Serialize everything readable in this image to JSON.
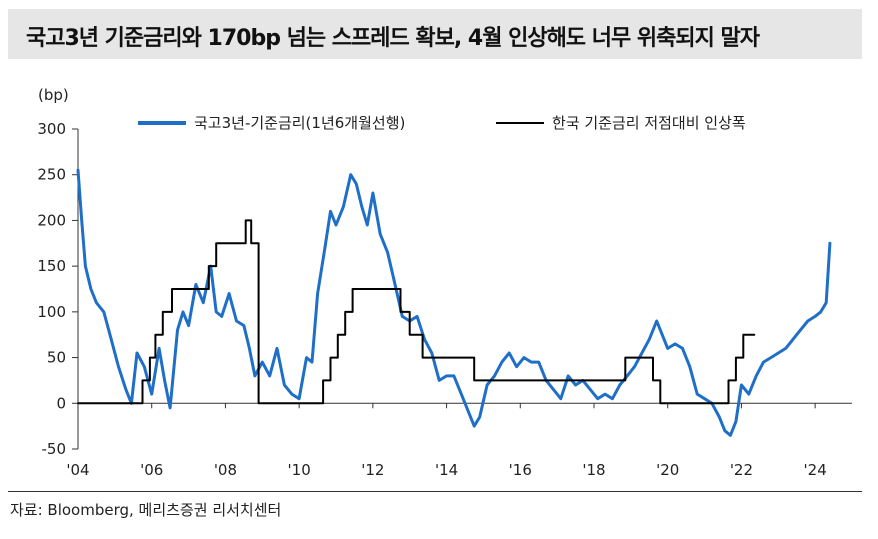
{
  "title": "국고3년 기준금리와 170bp 넘는 스프레드 확보, 4월 인상해도 너무 위축되지 말자",
  "source": "자료: Bloomberg, 메리츠증권 리서치센터",
  "chart_data": {
    "type": "line",
    "unit_label": "(bp)",
    "ylim": [
      -50,
      300
    ],
    "yticks": [
      -50,
      0,
      50,
      100,
      150,
      200,
      250,
      300
    ],
    "xlim": [
      2004.0,
      2025.0
    ],
    "xticks": [
      {
        "value": 2004,
        "label": "'04"
      },
      {
        "value": 2006,
        "label": "'06"
      },
      {
        "value": 2008,
        "label": "'08"
      },
      {
        "value": 2010,
        "label": "'10"
      },
      {
        "value": 2012,
        "label": "'12"
      },
      {
        "value": 2014,
        "label": "'14"
      },
      {
        "value": 2016,
        "label": "'16"
      },
      {
        "value": 2018,
        "label": "'18"
      },
      {
        "value": 2020,
        "label": "'20"
      },
      {
        "value": 2022,
        "label": "'22"
      },
      {
        "value": 2024,
        "label": "'24"
      }
    ],
    "grid": false,
    "legend_position": "top",
    "series": [
      {
        "name": "국고3년-기준금리(1년6개월선행)",
        "color": "#1f6fc8",
        "style": "line",
        "x": [
          2004.0,
          2004.1,
          2004.2,
          2004.35,
          2004.5,
          2004.7,
          2004.9,
          2005.1,
          2005.3,
          2005.45,
          2005.6,
          2005.8,
          2006.0,
          2006.2,
          2006.35,
          2006.5,
          2006.7,
          2006.85,
          2007.0,
          2007.2,
          2007.4,
          2007.6,
          2007.75,
          2007.9,
          2008.1,
          2008.3,
          2008.5,
          2008.65,
          2008.8,
          2009.0,
          2009.2,
          2009.4,
          2009.6,
          2009.8,
          2010.0,
          2010.2,
          2010.35,
          2010.5,
          2010.7,
          2010.85,
          2011.0,
          2011.2,
          2011.4,
          2011.55,
          2011.7,
          2011.85,
          2012.0,
          2012.2,
          2012.4,
          2012.6,
          2012.8,
          2013.0,
          2013.2,
          2013.4,
          2013.6,
          2013.8,
          2014.0,
          2014.2,
          2014.4,
          2014.6,
          2014.75,
          2014.9,
          2015.1,
          2015.3,
          2015.5,
          2015.7,
          2015.9,
          2016.1,
          2016.3,
          2016.5,
          2016.7,
          2016.9,
          2017.1,
          2017.3,
          2017.5,
          2017.7,
          2017.9,
          2018.1,
          2018.3,
          2018.5,
          2018.7,
          2018.9,
          2019.1,
          2019.3,
          2019.5,
          2019.7,
          2019.85,
          2020.0,
          2020.2,
          2020.4,
          2020.6,
          2020.8,
          2021.0,
          2021.2,
          2021.4,
          2021.55,
          2021.7,
          2021.85,
          2022.0,
          2022.2,
          2022.4,
          2022.6,
          2022.8,
          2023.0,
          2023.2,
          2023.4,
          2023.6,
          2023.8,
          2024.0,
          2024.15,
          2024.3,
          2024.4
        ],
        "y": [
          255,
          200,
          150,
          125,
          110,
          100,
          70,
          40,
          15,
          0,
          55,
          40,
          10,
          60,
          25,
          -5,
          80,
          100,
          85,
          130,
          110,
          150,
          100,
          95,
          120,
          90,
          85,
          60,
          30,
          45,
          30,
          60,
          20,
          10,
          5,
          50,
          45,
          120,
          170,
          210,
          195,
          215,
          250,
          240,
          215,
          195,
          230,
          185,
          165,
          130,
          95,
          90,
          95,
          70,
          55,
          25,
          30,
          30,
          10,
          -10,
          -25,
          -15,
          20,
          30,
          45,
          55,
          40,
          50,
          45,
          45,
          25,
          15,
          5,
          30,
          20,
          25,
          15,
          5,
          10,
          5,
          20,
          30,
          40,
          55,
          70,
          90,
          75,
          60,
          65,
          60,
          40,
          10,
          5,
          0,
          -15,
          -30,
          -35,
          -20,
          20,
          10,
          30,
          45,
          50,
          55,
          60,
          70,
          80,
          90,
          95,
          100,
          110,
          175
        ]
      },
      {
        "name": "한국 기준금리 저점대비 인상폭",
        "color": "#000000",
        "style": "step",
        "x": [
          2004.0,
          2005.75,
          2005.95,
          2006.1,
          2006.3,
          2006.55,
          2006.7,
          2007.55,
          2007.75,
          2008.55,
          2008.7,
          2008.9,
          2010.45,
          2010.65,
          2010.85,
          2011.05,
          2011.25,
          2011.45,
          2012.45,
          2012.75,
          2013.0,
          2013.35,
          2014.5,
          2014.75,
          2017.9,
          2018.85,
          2019.4,
          2019.6,
          2019.8,
          2020.0,
          2021.65,
          2021.85,
          2022.05,
          2022.2,
          2022.35
        ],
        "y": [
          0,
          25,
          50,
          75,
          100,
          125,
          125,
          150,
          175,
          200,
          175,
          0,
          0,
          25,
          50,
          75,
          100,
          125,
          125,
          100,
          75,
          50,
          50,
          25,
          25,
          50,
          50,
          25,
          0,
          0,
          25,
          50,
          75,
          75,
          75
        ]
      }
    ]
  }
}
